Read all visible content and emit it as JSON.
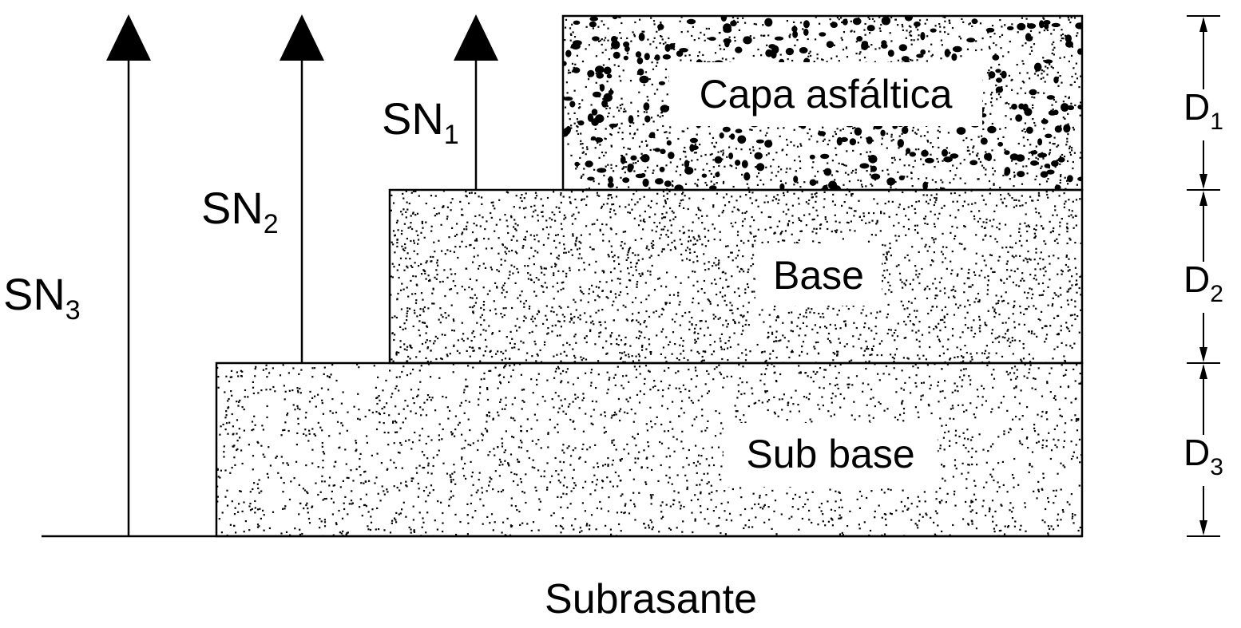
{
  "layers": {
    "surface": {
      "label": "Capa asfáltica",
      "thickness_label": "D",
      "thickness_sub": "1"
    },
    "base": {
      "label": "Base",
      "thickness_label": "D",
      "thickness_sub": "2"
    },
    "subbase": {
      "label": "Sub base",
      "thickness_label": "D",
      "thickness_sub": "3"
    }
  },
  "structural_numbers": [
    {
      "label": "SN",
      "sub": "1"
    },
    {
      "label": "SN",
      "sub": "2"
    },
    {
      "label": "SN",
      "sub": "3"
    }
  ],
  "subgrade": {
    "label": "Subrasante"
  },
  "colors": {
    "stroke": "#000000",
    "fill": "#ffffff"
  }
}
